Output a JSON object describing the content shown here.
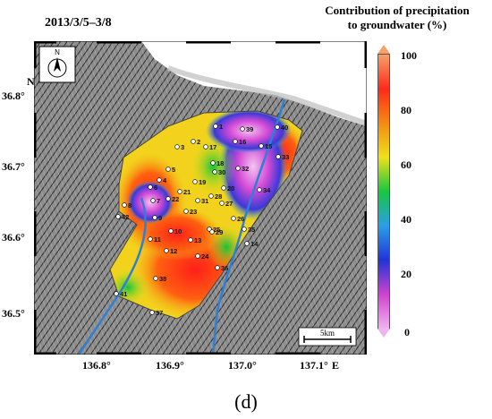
{
  "header": {
    "date_range": "2013/3/5–3/8",
    "colorbar_title_line1": "Contribution of precipitation",
    "colorbar_title_line2": "to groundwater (%)"
  },
  "colorbar": {
    "ticks": [
      "100",
      "80",
      "60",
      "40",
      "20",
      "0"
    ],
    "colors": [
      "#f6a06a",
      "#ff2a1a",
      "#f48a12",
      "#efe11a",
      "#17c73e",
      "#2a9ee8",
      "#2233d8",
      "#ce42d0",
      "#f1b3ef"
    ]
  },
  "axes": {
    "north_label": "N",
    "east_label": "E",
    "lat_ticks": [
      "36.8°",
      "36.7°",
      "36.6°",
      "36.5°"
    ],
    "lon_ticks": [
      "136.8°",
      "136.9°",
      "137.0°",
      "137.1°"
    ]
  },
  "compass": {
    "label": "N",
    "icon": "north-arrow-icon"
  },
  "scale_bar": {
    "label": "5km"
  },
  "panel_label": "(d)",
  "sites": [
    {
      "id": "1"
    },
    {
      "id": "2"
    },
    {
      "id": "3"
    },
    {
      "id": "4"
    },
    {
      "id": "5"
    },
    {
      "id": "6"
    },
    {
      "id": "7"
    },
    {
      "id": "8"
    },
    {
      "id": "9"
    },
    {
      "id": "10"
    },
    {
      "id": "11"
    },
    {
      "id": "12"
    },
    {
      "id": "13"
    },
    {
      "id": "14"
    },
    {
      "id": "15"
    },
    {
      "id": "16"
    },
    {
      "id": "17"
    },
    {
      "id": "18"
    },
    {
      "id": "19"
    },
    {
      "id": "20"
    },
    {
      "id": "21"
    },
    {
      "id": "22"
    },
    {
      "id": "23"
    },
    {
      "id": "24"
    },
    {
      "id": "25"
    },
    {
      "id": "26"
    },
    {
      "id": "27"
    },
    {
      "id": "28"
    },
    {
      "id": "29"
    },
    {
      "id": "30"
    },
    {
      "id": "31"
    },
    {
      "id": "32"
    },
    {
      "id": "33"
    },
    {
      "id": "34"
    },
    {
      "id": "35"
    },
    {
      "id": "36"
    },
    {
      "id": "37"
    },
    {
      "id": "38"
    },
    {
      "id": "39"
    },
    {
      "id": "40"
    },
    {
      "id": "41"
    },
    {
      "id": "42"
    }
  ]
}
